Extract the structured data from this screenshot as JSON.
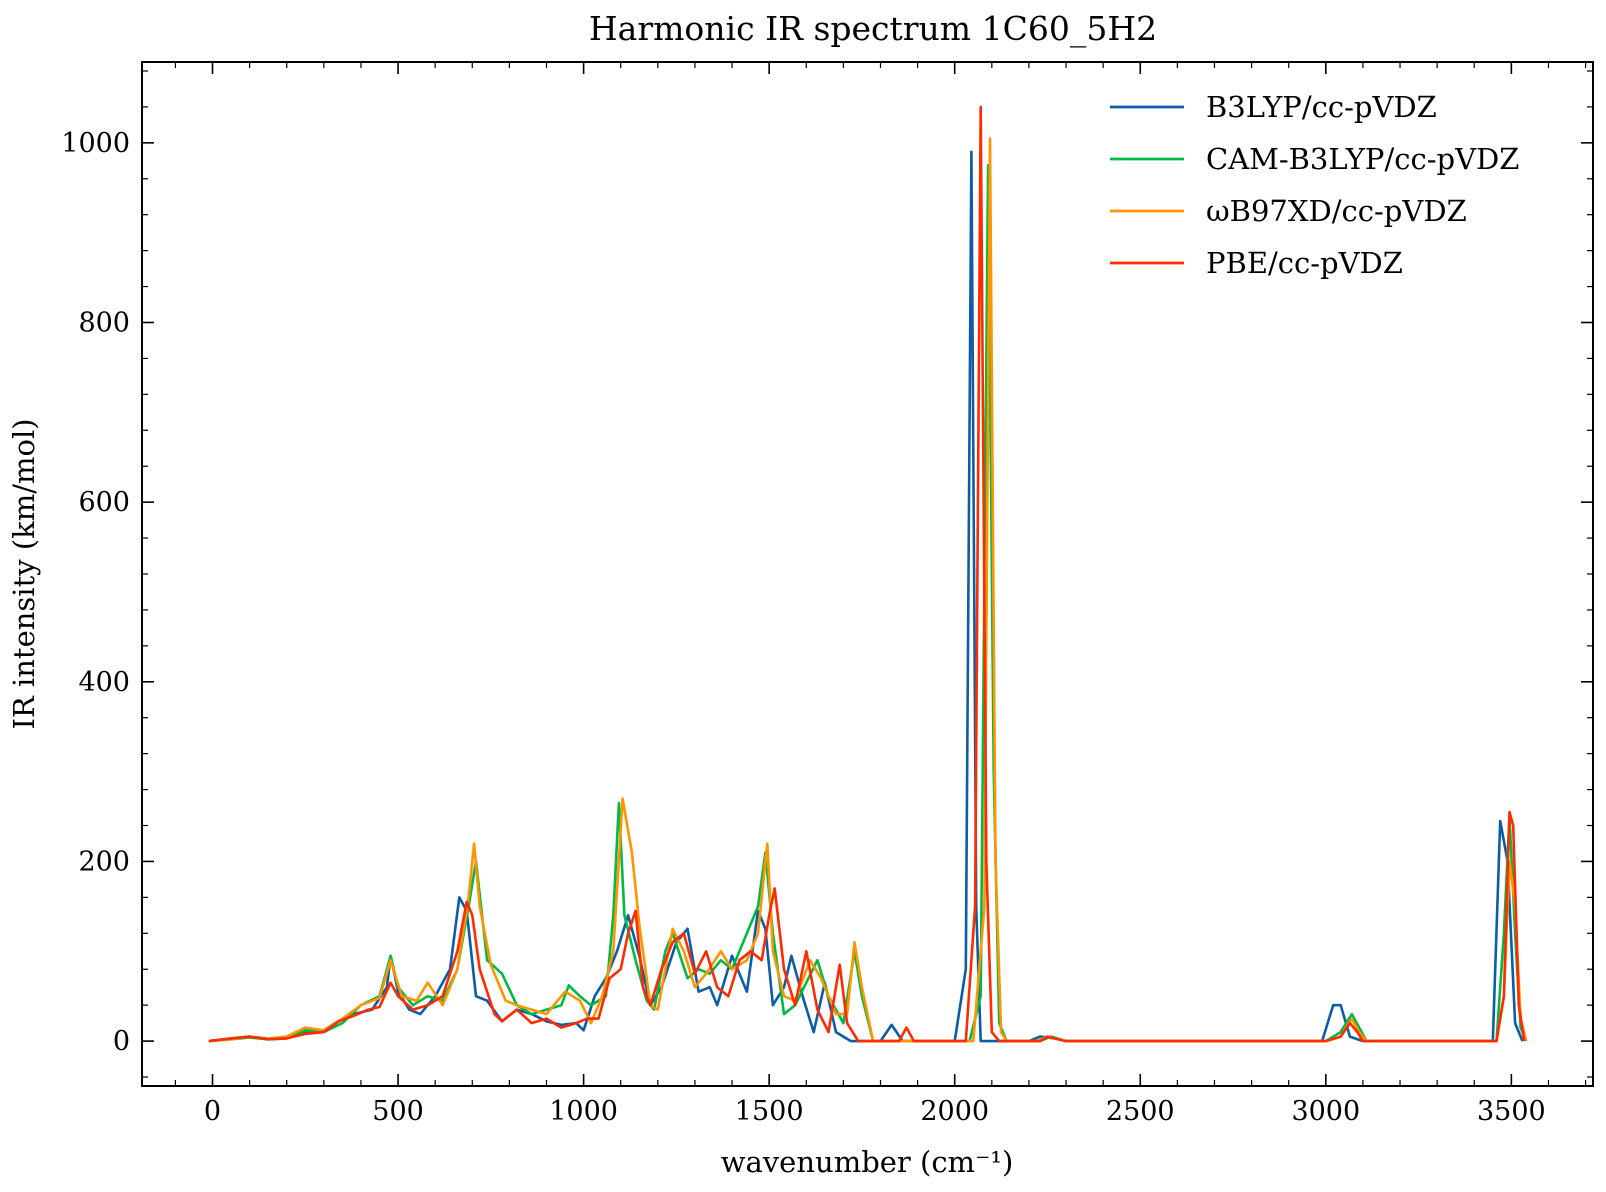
{
  "chart_data": {
    "type": "line",
    "title": "Harmonic IR spectrum 1C60_5H2",
    "xlabel": "wavenumber (cm⁻¹)",
    "ylabel": "IR intensity (km/mol)",
    "xlim": [
      -190,
      3720
    ],
    "ylim": [
      -50,
      1090
    ],
    "xticks": [
      0,
      500,
      1000,
      1500,
      2000,
      2500,
      3000,
      3500
    ],
    "yticks": [
      0,
      200,
      400,
      600,
      800,
      1000
    ],
    "xtick_labels": [
      "0",
      "500",
      "1000",
      "1500",
      "2000",
      "2500",
      "3000",
      "3500"
    ],
    "ytick_labels": [
      "0",
      "200",
      "400",
      "600",
      "800",
      "1000"
    ],
    "grid": false,
    "legend_position": "top-right",
    "series": [
      {
        "name": "B3LYP/cc-pVDZ",
        "color": "#0C5DA5",
        "points": [
          [
            -10,
            0
          ],
          [
            50,
            3
          ],
          [
            100,
            5
          ],
          [
            150,
            2
          ],
          [
            200,
            5
          ],
          [
            250,
            10
          ],
          [
            300,
            12
          ],
          [
            330,
            20
          ],
          [
            380,
            30
          ],
          [
            430,
            35
          ],
          [
            470,
            60
          ],
          [
            480,
            95
          ],
          [
            500,
            55
          ],
          [
            530,
            35
          ],
          [
            560,
            30
          ],
          [
            600,
            50
          ],
          [
            640,
            80
          ],
          [
            665,
            160
          ],
          [
            685,
            145
          ],
          [
            710,
            50
          ],
          [
            740,
            45
          ],
          [
            780,
            22
          ],
          [
            820,
            35
          ],
          [
            860,
            30
          ],
          [
            900,
            22
          ],
          [
            940,
            18
          ],
          [
            980,
            20
          ],
          [
            1000,
            12
          ],
          [
            1030,
            50
          ],
          [
            1060,
            70
          ],
          [
            1090,
            100
          ],
          [
            1120,
            140
          ],
          [
            1150,
            95
          ],
          [
            1180,
            40
          ],
          [
            1210,
            60
          ],
          [
            1250,
            110
          ],
          [
            1280,
            125
          ],
          [
            1310,
            55
          ],
          [
            1340,
            60
          ],
          [
            1360,
            40
          ],
          [
            1400,
            95
          ],
          [
            1440,
            55
          ],
          [
            1470,
            145
          ],
          [
            1490,
            125
          ],
          [
            1510,
            40
          ],
          [
            1540,
            60
          ],
          [
            1560,
            95
          ],
          [
            1590,
            50
          ],
          [
            1620,
            10
          ],
          [
            1650,
            65
          ],
          [
            1680,
            10
          ],
          [
            1720,
            0
          ],
          [
            1800,
            0
          ],
          [
            1830,
            18
          ],
          [
            1860,
            0
          ],
          [
            2000,
            0
          ],
          [
            2030,
            80
          ],
          [
            2045,
            990
          ],
          [
            2058,
            150
          ],
          [
            2070,
            0
          ],
          [
            2200,
            0
          ],
          [
            2230,
            5
          ],
          [
            2270,
            3
          ],
          [
            2300,
            0
          ],
          [
            2990,
            0
          ],
          [
            3020,
            40
          ],
          [
            3040,
            40
          ],
          [
            3065,
            5
          ],
          [
            3100,
            0
          ],
          [
            3450,
            0
          ],
          [
            3470,
            245
          ],
          [
            3490,
            200
          ],
          [
            3510,
            20
          ],
          [
            3530,
            0
          ]
        ]
      },
      {
        "name": "CAM-B3LYP/cc-pVDZ",
        "color": "#00B945",
        "points": [
          [
            -10,
            0
          ],
          [
            50,
            2
          ],
          [
            100,
            4
          ],
          [
            150,
            2
          ],
          [
            200,
            3
          ],
          [
            250,
            12
          ],
          [
            300,
            10
          ],
          [
            350,
            20
          ],
          [
            400,
            40
          ],
          [
            450,
            50
          ],
          [
            480,
            95
          ],
          [
            500,
            60
          ],
          [
            540,
            40
          ],
          [
            580,
            50
          ],
          [
            620,
            45
          ],
          [
            660,
            80
          ],
          [
            690,
            150
          ],
          [
            710,
            200
          ],
          [
            740,
            90
          ],
          [
            780,
            75
          ],
          [
            820,
            40
          ],
          [
            860,
            30
          ],
          [
            900,
            35
          ],
          [
            940,
            40
          ],
          [
            960,
            62
          ],
          [
            990,
            50
          ],
          [
            1020,
            40
          ],
          [
            1060,
            50
          ],
          [
            1080,
            140
          ],
          [
            1095,
            265
          ],
          [
            1110,
            140
          ],
          [
            1140,
            90
          ],
          [
            1170,
            45
          ],
          [
            1190,
            35
          ],
          [
            1220,
            100
          ],
          [
            1240,
            120
          ],
          [
            1280,
            70
          ],
          [
            1310,
            80
          ],
          [
            1340,
            75
          ],
          [
            1370,
            90
          ],
          [
            1400,
            80
          ],
          [
            1440,
            120
          ],
          [
            1470,
            150
          ],
          [
            1490,
            210
          ],
          [
            1510,
            120
          ],
          [
            1540,
            30
          ],
          [
            1570,
            40
          ],
          [
            1600,
            65
          ],
          [
            1630,
            90
          ],
          [
            1660,
            50
          ],
          [
            1700,
            20
          ],
          [
            1730,
            100
          ],
          [
            1750,
            50
          ],
          [
            1780,
            0
          ],
          [
            1900,
            0
          ],
          [
            2040,
            0
          ],
          [
            2070,
            50
          ],
          [
            2090,
            975
          ],
          [
            2105,
            300
          ],
          [
            2120,
            20
          ],
          [
            2140,
            0
          ],
          [
            2230,
            0
          ],
          [
            2260,
            5
          ],
          [
            2300,
            0
          ],
          [
            3000,
            0
          ],
          [
            3040,
            10
          ],
          [
            3070,
            30
          ],
          [
            3090,
            15
          ],
          [
            3110,
            0
          ],
          [
            3460,
            0
          ],
          [
            3480,
            120
          ],
          [
            3495,
            250
          ],
          [
            3510,
            120
          ],
          [
            3525,
            15
          ],
          [
            3540,
            0
          ]
        ]
      },
      {
        "name": "ωB97XD/cc-pVDZ",
        "color": "#FF9500",
        "points": [
          [
            -10,
            0
          ],
          [
            50,
            2
          ],
          [
            100,
            5
          ],
          [
            150,
            3
          ],
          [
            200,
            5
          ],
          [
            250,
            15
          ],
          [
            300,
            12
          ],
          [
            350,
            25
          ],
          [
            400,
            40
          ],
          [
            450,
            48
          ],
          [
            480,
            90
          ],
          [
            510,
            50
          ],
          [
            550,
            45
          ],
          [
            580,
            65
          ],
          [
            620,
            40
          ],
          [
            660,
            80
          ],
          [
            690,
            160
          ],
          [
            705,
            220
          ],
          [
            720,
            150
          ],
          [
            750,
            85
          ],
          [
            790,
            45
          ],
          [
            820,
            40
          ],
          [
            860,
            35
          ],
          [
            900,
            30
          ],
          [
            950,
            55
          ],
          [
            990,
            45
          ],
          [
            1020,
            20
          ],
          [
            1050,
            50
          ],
          [
            1080,
            100
          ],
          [
            1105,
            270
          ],
          [
            1130,
            210
          ],
          [
            1150,
            130
          ],
          [
            1180,
            40
          ],
          [
            1200,
            35
          ],
          [
            1240,
            125
          ],
          [
            1270,
            100
          ],
          [
            1300,
            60
          ],
          [
            1330,
            75
          ],
          [
            1370,
            100
          ],
          [
            1400,
            80
          ],
          [
            1440,
            90
          ],
          [
            1470,
            120
          ],
          [
            1495,
            220
          ],
          [
            1510,
            100
          ],
          [
            1540,
            50
          ],
          [
            1570,
            45
          ],
          [
            1610,
            90
          ],
          [
            1640,
            70
          ],
          [
            1680,
            30
          ],
          [
            1710,
            30
          ],
          [
            1730,
            110
          ],
          [
            1750,
            60
          ],
          [
            1780,
            0
          ],
          [
            1900,
            0
          ],
          [
            2050,
            0
          ],
          [
            2080,
            150
          ],
          [
            2095,
            1005
          ],
          [
            2110,
            200
          ],
          [
            2125,
            10
          ],
          [
            2140,
            0
          ],
          [
            2220,
            0
          ],
          [
            2250,
            5
          ],
          [
            2300,
            0
          ],
          [
            3000,
            0
          ],
          [
            3040,
            5
          ],
          [
            3070,
            25
          ],
          [
            3090,
            10
          ],
          [
            3110,
            0
          ],
          [
            3460,
            0
          ],
          [
            3480,
            50
          ],
          [
            3495,
            200
          ],
          [
            3510,
            150
          ],
          [
            3525,
            25
          ],
          [
            3540,
            0
          ]
        ]
      },
      {
        "name": "PBE/cc-pVDZ",
        "color": "#FF2C00",
        "points": [
          [
            -10,
            0
          ],
          [
            50,
            3
          ],
          [
            100,
            5
          ],
          [
            150,
            2
          ],
          [
            200,
            3
          ],
          [
            250,
            8
          ],
          [
            300,
            10
          ],
          [
            340,
            22
          ],
          [
            380,
            28
          ],
          [
            420,
            35
          ],
          [
            450,
            38
          ],
          [
            480,
            65
          ],
          [
            500,
            50
          ],
          [
            540,
            35
          ],
          [
            580,
            40
          ],
          [
            620,
            50
          ],
          [
            660,
            100
          ],
          [
            685,
            155
          ],
          [
            700,
            140
          ],
          [
            720,
            80
          ],
          [
            760,
            30
          ],
          [
            780,
            22
          ],
          [
            820,
            35
          ],
          [
            860,
            20
          ],
          [
            900,
            25
          ],
          [
            940,
            15
          ],
          [
            980,
            20
          ],
          [
            1010,
            25
          ],
          [
            1040,
            25
          ],
          [
            1070,
            70
          ],
          [
            1100,
            80
          ],
          [
            1120,
            120
          ],
          [
            1140,
            145
          ],
          [
            1160,
            60
          ],
          [
            1180,
            40
          ],
          [
            1210,
            80
          ],
          [
            1240,
            110
          ],
          [
            1270,
            120
          ],
          [
            1300,
            75
          ],
          [
            1330,
            100
          ],
          [
            1360,
            60
          ],
          [
            1390,
            50
          ],
          [
            1420,
            90
          ],
          [
            1450,
            100
          ],
          [
            1480,
            90
          ],
          [
            1500,
            140
          ],
          [
            1515,
            170
          ],
          [
            1540,
            80
          ],
          [
            1570,
            40
          ],
          [
            1600,
            100
          ],
          [
            1630,
            35
          ],
          [
            1660,
            10
          ],
          [
            1690,
            85
          ],
          [
            1710,
            20
          ],
          [
            1740,
            0
          ],
          [
            1850,
            0
          ],
          [
            1870,
            15
          ],
          [
            1890,
            0
          ],
          [
            2030,
            0
          ],
          [
            2055,
            150
          ],
          [
            2070,
            1040
          ],
          [
            2085,
            200
          ],
          [
            2100,
            10
          ],
          [
            2120,
            0
          ],
          [
            2230,
            0
          ],
          [
            2250,
            5
          ],
          [
            2300,
            0
          ],
          [
            3000,
            0
          ],
          [
            3040,
            5
          ],
          [
            3065,
            20
          ],
          [
            3085,
            10
          ],
          [
            3100,
            0
          ],
          [
            3460,
            0
          ],
          [
            3480,
            50
          ],
          [
            3495,
            255
          ],
          [
            3505,
            240
          ],
          [
            3520,
            40
          ],
          [
            3535,
            0
          ]
        ]
      }
    ]
  }
}
